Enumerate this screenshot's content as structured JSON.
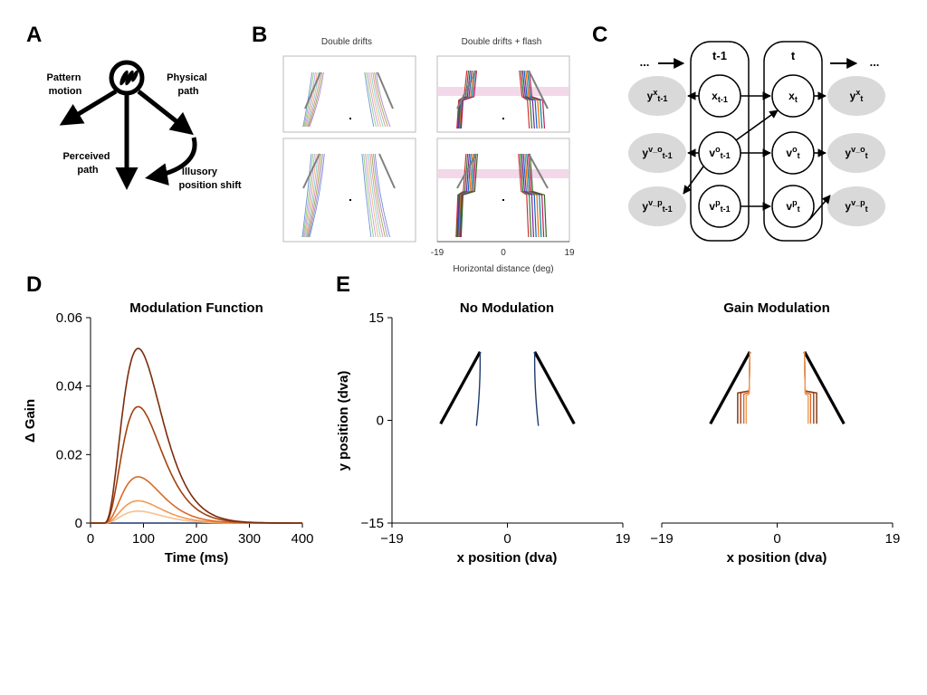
{
  "panel_labels": {
    "a": "A",
    "b": "B",
    "c": "C",
    "d": "D",
    "e": "E"
  },
  "panel_a": {
    "pattern_motion": [
      "Pattern",
      "motion"
    ],
    "physical_path": [
      "Physical",
      "path"
    ],
    "perceived_path": [
      "Perceived",
      "path"
    ],
    "illusory_shift": [
      "Illusory",
      "position shift"
    ]
  },
  "panel_b": {
    "title_left": "Double drifts",
    "title_right": "Double drifts + flash",
    "ticks": [
      "-19",
      "0",
      "19"
    ],
    "xlabel": "Horizontal distance (deg)"
  },
  "panel_c": {
    "col_prev": "t-1",
    "col_cur": "t",
    "ellipsis": "...",
    "nodes": {
      "x_prev": {
        "base": "x",
        "sub": "t-1"
      },
      "vo_prev": {
        "base": "v",
        "sup": "o",
        "sub": "t-1"
      },
      "vp_prev": {
        "base": "v",
        "sup": "p",
        "sub": "t-1"
      },
      "x_cur": {
        "base": "x",
        "sub": "t"
      },
      "vo_cur": {
        "base": "v",
        "sup": "o",
        "sub": "t"
      },
      "vp_cur": {
        "base": "v",
        "sup": "p",
        "sub": "t"
      }
    },
    "observations": {
      "yx_prev": {
        "base": "y",
        "sup": "x",
        "sub": "t-1"
      },
      "yvo_prev": {
        "base": "y",
        "sup": "v_o",
        "sub": "t-1"
      },
      "yvp_prev": {
        "base": "y",
        "sup": "v_p",
        "sub": "t-1"
      },
      "yx_cur": {
        "base": "y",
        "sup": "x",
        "sub": "t"
      },
      "yvo_cur": {
        "base": "y",
        "sup": "v_o",
        "sub": "t"
      },
      "yvp_cur": {
        "base": "y",
        "sup": "v_p",
        "sub": "t"
      }
    }
  },
  "colors": {
    "blue_trace": "#1f3a6e",
    "brown_dark": "#7a2c0c",
    "brown": "#a3410f",
    "orange": "#d96a28",
    "orange_light": "#f09a55",
    "peach": "#f8c090",
    "node_fill": "#d9d9d9",
    "flash_band": "#f3d8ea"
  },
  "chart_data": [
    {
      "panel": "D",
      "type": "line",
      "title": "Modulation Function",
      "xlabel": "Time (ms)",
      "ylabel": "Δ Gain",
      "xlim": [
        0,
        400
      ],
      "ylim": [
        0,
        0.06
      ],
      "xticks": [
        "0",
        "100",
        "200",
        "300",
        "400"
      ],
      "yticks": [
        "0",
        "0.02",
        "0.04",
        "0.06"
      ],
      "peak_time": 90,
      "series": [
        {
          "peak": 0.0,
          "color": "#1f3a6e"
        },
        {
          "peak": 0.0035,
          "color": "#f8c090"
        },
        {
          "peak": 0.0065,
          "color": "#f09a55"
        },
        {
          "peak": 0.0135,
          "color": "#d96a28"
        },
        {
          "peak": 0.034,
          "color": "#a3410f"
        },
        {
          "peak": 0.051,
          "color": "#7a2c0c"
        }
      ]
    },
    {
      "panel": "E-left",
      "type": "line",
      "title": "No Modulation",
      "xlabel": "x position (dva)",
      "ylabel": "y position (dva)",
      "xlim": [
        -19,
        19
      ],
      "ylim": [
        -15,
        15
      ],
      "xticks": [
        "−19",
        "0",
        "19"
      ],
      "yticks": [
        "−15",
        "0",
        "15"
      ],
      "physical_paths": [
        {
          "x": [
            -11,
            -4.5
          ],
          "y": [
            -0.5,
            10
          ]
        },
        {
          "x": [
            11,
            4.5
          ],
          "y": [
            -0.5,
            10
          ]
        }
      ],
      "perceived_paths": [
        {
          "x": [
            -5.1,
            -4.4,
            -4.5
          ],
          "y": [
            -0.8,
            5,
            10
          ]
        },
        {
          "x": [
            5.1,
            4.4,
            4.5
          ],
          "y": [
            -0.8,
            5,
            10
          ]
        }
      ]
    },
    {
      "panel": "E-right",
      "type": "line",
      "title": "Gain Modulation",
      "xlabel": "x position (dva)",
      "ylabel": "",
      "xlim": [
        -19,
        19
      ],
      "ylim": [
        -15,
        15
      ],
      "xticks": [
        "−19",
        "0",
        "19"
      ],
      "physical_paths": [
        {
          "x": [
            -11,
            -4.5
          ],
          "y": [
            -0.5,
            10
          ]
        },
        {
          "x": [
            11,
            4.5
          ],
          "y": [
            -0.5,
            10
          ]
        }
      ],
      "perceived_paths": [
        {
          "x": [
            -6.5,
            -6.5,
            -4.6,
            -4.5
          ],
          "y": [
            -0.5,
            4,
            4.3,
            10
          ],
          "color": "#7a2c0c"
        },
        {
          "x": [
            -6.0,
            -6.0,
            -4.6,
            -4.5
          ],
          "y": [
            -0.5,
            4,
            4.3,
            10
          ],
          "color": "#a3410f"
        },
        {
          "x": [
            -5.5,
            -5.5,
            -4.6,
            -4.5
          ],
          "y": [
            -0.5,
            3.8,
            4.1,
            10
          ],
          "color": "#d96a28"
        },
        {
          "x": [
            -5.1,
            -5.1,
            -4.6,
            -4.5
          ],
          "y": [
            -0.5,
            3.6,
            3.9,
            10
          ],
          "color": "#f09a55"
        },
        {
          "x": [
            6.5,
            6.5,
            4.6,
            4.5
          ],
          "y": [
            -0.5,
            4,
            4.3,
            10
          ],
          "color": "#7a2c0c"
        },
        {
          "x": [
            6.0,
            6.0,
            4.6,
            4.5
          ],
          "y": [
            -0.5,
            4,
            4.3,
            10
          ],
          "color": "#a3410f"
        },
        {
          "x": [
            5.5,
            5.5,
            4.6,
            4.5
          ],
          "y": [
            -0.5,
            3.8,
            4.1,
            10
          ],
          "color": "#d96a28"
        },
        {
          "x": [
            5.1,
            5.1,
            4.6,
            4.5
          ],
          "y": [
            -0.5,
            3.6,
            3.9,
            10
          ],
          "color": "#f09a55"
        }
      ]
    }
  ]
}
